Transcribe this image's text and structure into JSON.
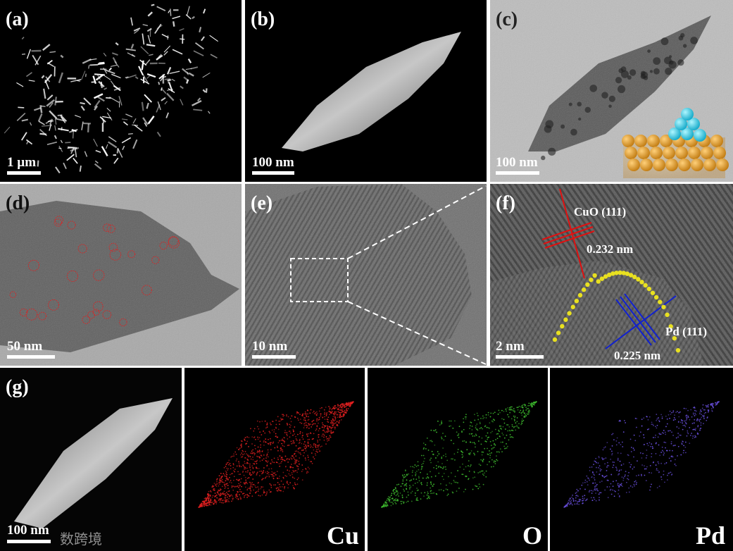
{
  "panels": [
    {
      "label": "(a)",
      "scale_bar": "1 µm"
    },
    {
      "label": "(b)",
      "scale_bar": "100 nm"
    },
    {
      "label": "(c)",
      "scale_bar": "100 nm"
    },
    {
      "label": "(d)",
      "scale_bar": "50 nm"
    },
    {
      "label": "(e)",
      "scale_bar": "10 nm"
    },
    {
      "label": "(f)",
      "scale_bar": "2 nm"
    },
    {
      "label": "(g)",
      "scale_bar": "100 nm"
    }
  ],
  "annotations": {
    "cuo_plane": "CuO (111)",
    "cuo_spacing": "0.232 nm",
    "pd_plane": "Pd (111)",
    "pd_spacing": "0.225 nm"
  },
  "maps": [
    "Cu",
    "O",
    "Pd"
  ],
  "watermark": "数跨境"
}
